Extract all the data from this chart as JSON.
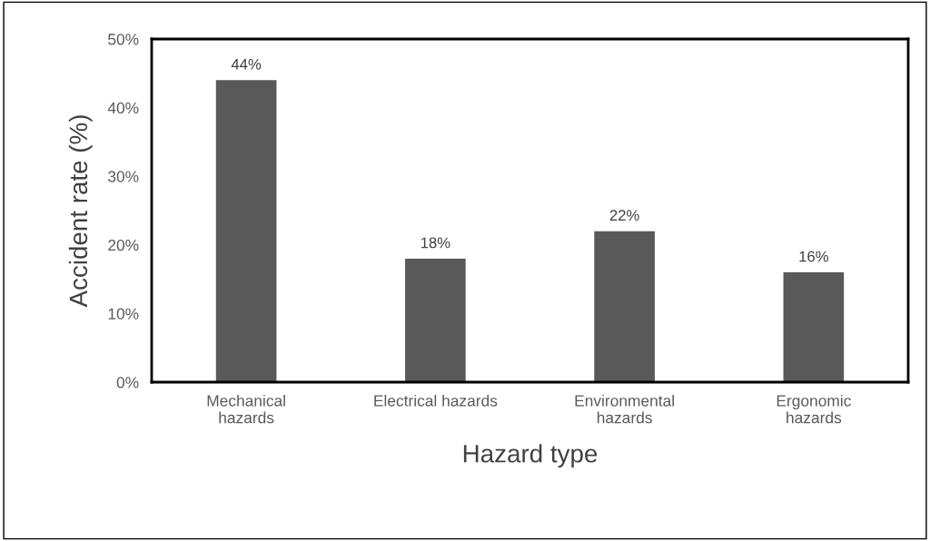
{
  "chart_data": {
    "type": "bar",
    "xlabel": "Hazard type",
    "ylabel": "Accident rate (%)",
    "categories": [
      "Mechanical\nhazards",
      "Electrical hazards",
      "Environmental\nhazards",
      "Ergonomic\nhazards"
    ],
    "values": [
      44,
      18,
      22,
      16
    ],
    "color": "#595959",
    "value_labels": [
      "44%",
      "18%",
      "22%",
      "16%"
    ],
    "ylim": [
      0,
      50
    ],
    "yticks": [
      {
        "value": 0,
        "label": "0%"
      },
      {
        "value": 10,
        "label": "10%"
      },
      {
        "value": 20,
        "label": "20%"
      },
      {
        "value": 30,
        "label": "30%"
      },
      {
        "value": 40,
        "label": "40%"
      },
      {
        "value": 50,
        "label": "50%"
      }
    ],
    "grid": false
  }
}
